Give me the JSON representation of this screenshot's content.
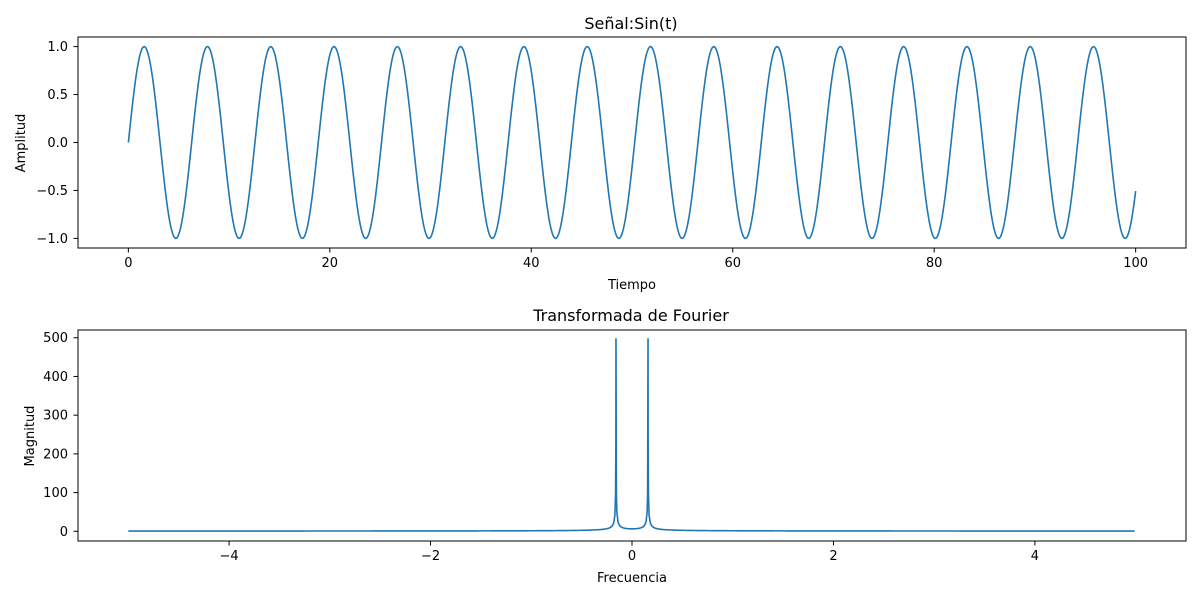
{
  "chart_data": [
    {
      "type": "line",
      "title": "Señal:Sin(t)",
      "xlabel": "Tiempo",
      "ylabel": "Amplitud",
      "xlim": [
        -5,
        105
      ],
      "ylim": [
        -1.1,
        1.1
      ],
      "xticks": [
        0,
        20,
        40,
        60,
        80,
        100
      ],
      "xtick_labels": [
        "0",
        "20",
        "40",
        "60",
        "80",
        "100"
      ],
      "yticks": [
        -1.0,
        -0.5,
        0.0,
        0.5,
        1.0
      ],
      "ytick_labels": [
        "−1.0",
        "−0.5",
        "0.0",
        "0.5",
        "1.0"
      ],
      "grid": false,
      "color": "#1f77b4",
      "series": [
        {
          "function": "sin(t)",
          "x_start": 0,
          "x_end": 100,
          "samples": 1000
        }
      ]
    },
    {
      "type": "line",
      "title": "Transformada de Fourier",
      "xlabel": "Frecuencia",
      "ylabel": "Magnitud",
      "xlim": [
        -5.5,
        5.5
      ],
      "ylim": [
        -25,
        520
      ],
      "xticks": [
        -4,
        -2,
        0,
        2,
        4
      ],
      "xtick_labels": [
        "−4",
        "−2",
        "0",
        "2",
        "4"
      ],
      "yticks": [
        0,
        100,
        200,
        300,
        400,
        500
      ],
      "ytick_labels": [
        "0",
        "100",
        "200",
        "300",
        "400",
        "500"
      ],
      "grid": false,
      "color": "#1f77b4",
      "series": [
        {
          "description": "FFT magnitude of sin(t)",
          "x_start": -5,
          "x_end": 4.99,
          "samples": 1000,
          "peaks": [
            {
              "x": -0.159,
              "y": 497
            },
            {
              "x": 0.159,
              "y": 497
            }
          ],
          "baseline": 0.5
        }
      ]
    }
  ]
}
